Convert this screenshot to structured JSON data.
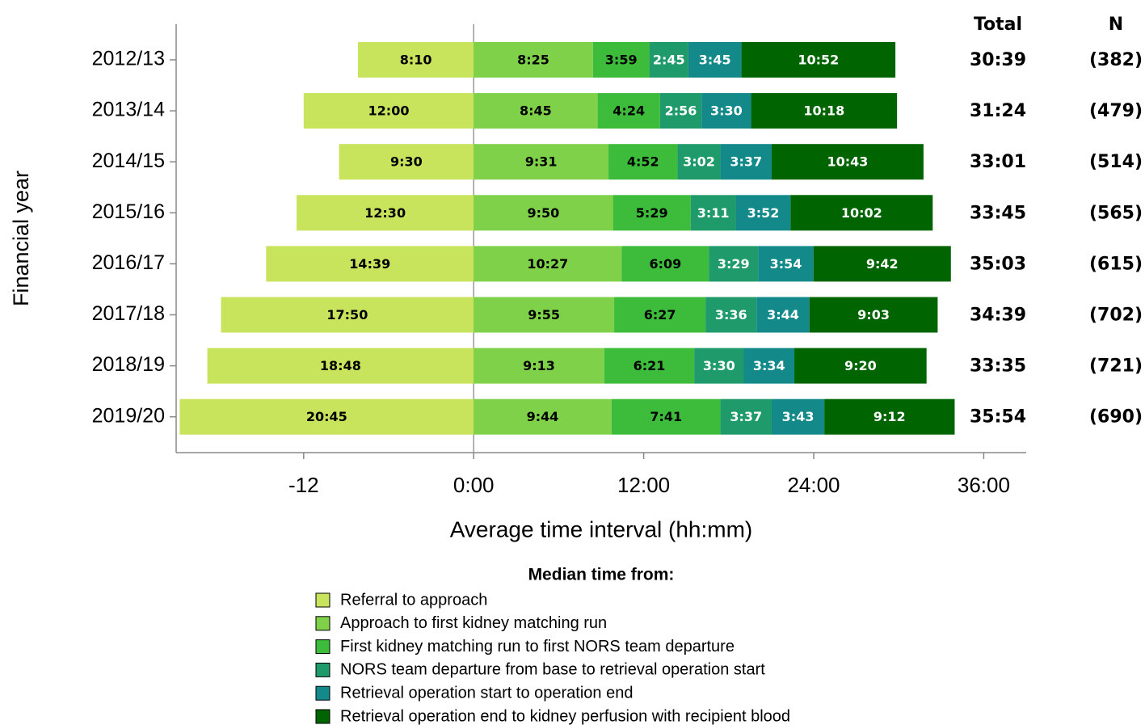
{
  "chart_data": {
    "type": "stacked_barh",
    "y_label": "Financial year",
    "x_label": "Average time interval (hh:mm)",
    "categories": [
      "2012/13",
      "2013/14",
      "2014/15",
      "2015/16",
      "2016/17",
      "2017/18",
      "2018/19",
      "2019/20"
    ],
    "legend_title": "Median time from:",
    "series": [
      {
        "name": "Referral to approach",
        "color": "#c8e35c",
        "label_color": "#000000",
        "values": [
          -8.1667,
          -12,
          -9.5,
          -12.5,
          -14.65,
          -17.8333,
          -18.8,
          -20.75
        ],
        "value_labels": [
          "8:10",
          "12:00",
          "9:30",
          "12:30",
          "14:39",
          "17:50",
          "18:48",
          "20:45"
        ]
      },
      {
        "name": "Approach to first kidney matching run",
        "color": "#7fd14a",
        "label_color": "#000000",
        "values": [
          8.4167,
          8.75,
          9.5167,
          9.8333,
          10.45,
          9.9167,
          9.2167,
          9.7333
        ],
        "value_labels": [
          "8:25",
          "8:45",
          "9:31",
          "9:50",
          "10:27",
          "9:55",
          "9:13",
          "9:44"
        ]
      },
      {
        "name": "First kidney matching run to first NORS team departure",
        "color": "#3dbb3a",
        "label_color": "#000000",
        "values": [
          3.9833,
          4.4,
          4.8667,
          5.4833,
          6.15,
          6.45,
          6.35,
          7.6833
        ],
        "value_labels": [
          "3:59",
          "4:24",
          "4:52",
          "5:29",
          "6:09",
          "6:27",
          "6:21",
          "7:41"
        ]
      },
      {
        "name": "NORS team departure from base to retrieval operation start",
        "color": "#1f9a6a",
        "label_color": "#ffffff",
        "values": [
          2.75,
          2.9333,
          3.0333,
          3.1833,
          3.4833,
          3.6,
          3.5,
          3.6167
        ],
        "value_labels": [
          "2:45",
          "2:56",
          "3:02",
          "3:11",
          "3:29",
          "3:36",
          "3:30",
          "3:37"
        ]
      },
      {
        "name": "Retrieval operation start to operation end",
        "color": "#13898a",
        "label_color": "#ffffff",
        "values": [
          3.75,
          3.5,
          3.6167,
          3.8667,
          3.9,
          3.7333,
          3.5667,
          3.7167
        ],
        "value_labels": [
          "3:45",
          "3:30",
          "3:37",
          "3:52",
          "3:54",
          "3:44",
          "3:34",
          "3:43"
        ]
      },
      {
        "name": "Retrieval operation end to kidney perfusion with recipient blood",
        "color": "#006400",
        "label_color": "#ffffff",
        "values": [
          10.8667,
          10.3,
          10.7167,
          10.0333,
          9.7,
          9.05,
          9.3333,
          9.2
        ],
        "value_labels": [
          "10:52",
          "10:18",
          "10:43",
          "10:02",
          "9:42",
          "9:03",
          "9:20",
          "9:12"
        ]
      }
    ],
    "total_header": "Total",
    "totals": [
      "30:39",
      "31:24",
      "33:01",
      "33:45",
      "35:03",
      "34:39",
      "33:35",
      "35:54"
    ],
    "n_header": "N",
    "n": [
      "(382)",
      "(479)",
      "(514)",
      "(565)",
      "(615)",
      "(702)",
      "(721)",
      "(690)"
    ],
    "xlim": [
      -21,
      39
    ],
    "xticks": [
      -12,
      {
        "value": 0,
        "label": "0:00"
      },
      {
        "value": 12,
        "label": "12:00"
      },
      {
        "value": 24,
        "label": "24:00"
      },
      {
        "value": 36,
        "label": "36:00"
      }
    ]
  }
}
